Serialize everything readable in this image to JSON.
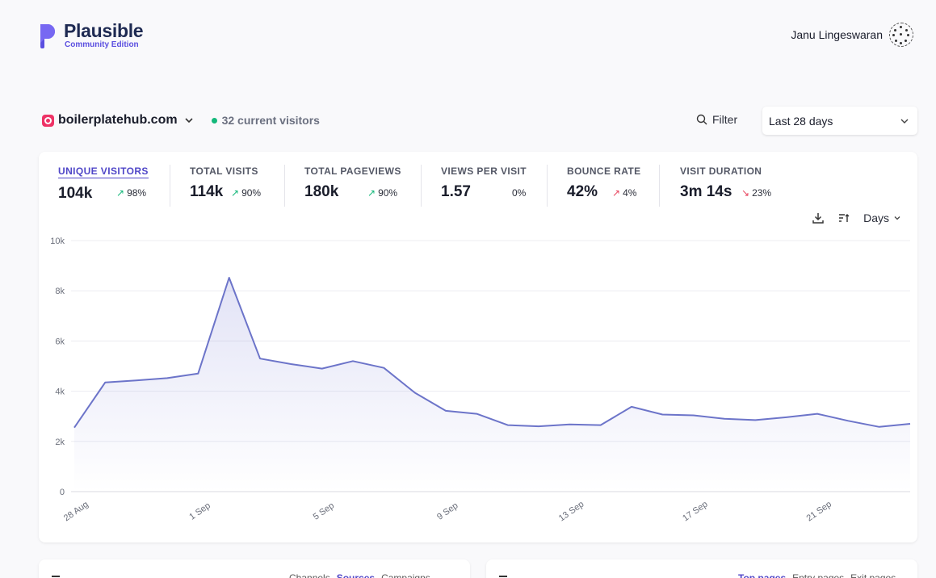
{
  "brand": {
    "title": "Plausible",
    "subtitle": "Community Edition",
    "accent": "#5b4fe0"
  },
  "user": {
    "name": "Janu Lingeswaran"
  },
  "site": {
    "name": "boilerplatehub.com",
    "live_text": "32 current visitors"
  },
  "toolbar": {
    "filter_label": "Filter",
    "period_label": "Last 28 days"
  },
  "metrics": [
    {
      "label": "UNIQUE VISITORS",
      "value": "104k",
      "change": "98%",
      "trend": "up",
      "active": true
    },
    {
      "label": "TOTAL VISITS",
      "value": "114k",
      "change": "90%",
      "trend": "up"
    },
    {
      "label": "TOTAL PAGEVIEWS",
      "value": "180k",
      "change": "90%",
      "trend": "up"
    },
    {
      "label": "VIEWS PER VISIT",
      "value": "1.57",
      "change": "0%",
      "trend": "none"
    },
    {
      "label": "BOUNCE RATE",
      "value": "42%",
      "change": "4%",
      "trend": "up-bad"
    },
    {
      "label": "VISIT DURATION",
      "value": "3m 14s",
      "change": "23%",
      "trend": "down-bad"
    }
  ],
  "chart_tools": {
    "interval_label": "Days"
  },
  "chart_data": {
    "type": "area",
    "y_ticks": [
      "0",
      "2k",
      "4k",
      "6k",
      "8k",
      "10k"
    ],
    "ylim": [
      0,
      10000
    ],
    "x_ticks": [
      "28 Aug",
      "1 Sep",
      "5 Sep",
      "9 Sep",
      "13 Sep",
      "17 Sep",
      "21 Sep"
    ],
    "x": [
      "28 Aug",
      "29 Aug",
      "30 Aug",
      "31 Aug",
      "1 Sep",
      "2 Sep",
      "3 Sep",
      "4 Sep",
      "5 Sep",
      "6 Sep",
      "7 Sep",
      "8 Sep",
      "9 Sep",
      "10 Sep",
      "11 Sep",
      "12 Sep",
      "13 Sep",
      "14 Sep",
      "15 Sep",
      "16 Sep",
      "17 Sep",
      "18 Sep",
      "19 Sep",
      "20 Sep",
      "21 Sep",
      "22 Sep",
      "23 Sep",
      "24 Sep"
    ],
    "series": [
      {
        "values": [
          2550,
          4350,
          4430,
          4520,
          4700,
          8520,
          5300,
          5080,
          4900,
          5200,
          4930,
          3940,
          3220,
          3100,
          2650,
          2600,
          2680,
          2650,
          3380,
          3070,
          3040,
          2900,
          2850,
          2960,
          3100,
          2820,
          2580,
          2700
        ]
      }
    ],
    "grid": true,
    "line_color": "#6c74c9"
  },
  "bottom_left": {
    "tabs": [
      "Channels",
      "Sources",
      "Campaigns"
    ],
    "active": "Sources"
  },
  "bottom_right": {
    "tabs": [
      "Top pages",
      "Entry pages",
      "Exit pages"
    ],
    "active": "Top pages"
  }
}
